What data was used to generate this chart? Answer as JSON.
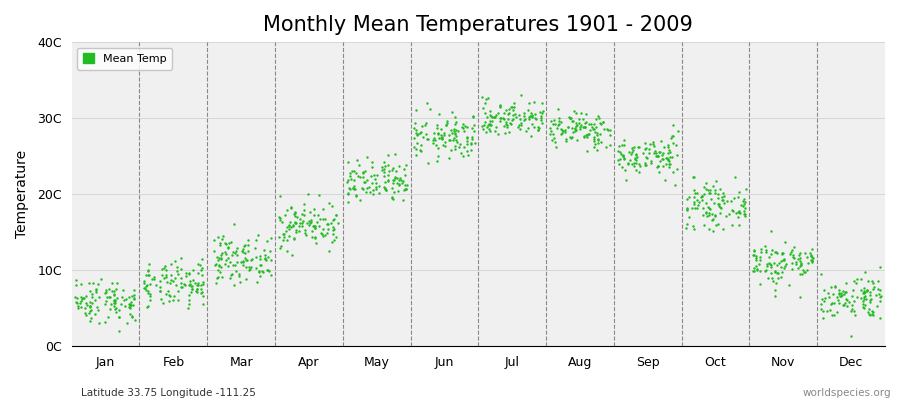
{
  "title": "Monthly Mean Temperatures 1901 - 2009",
  "ylabel": "Temperature",
  "xlabel_labels": [
    "Jan",
    "Feb",
    "Mar",
    "Apr",
    "May",
    "Jun",
    "Jul",
    "Aug",
    "Sep",
    "Oct",
    "Nov",
    "Dec"
  ],
  "ytick_labels": [
    "0C",
    "10C",
    "20C",
    "30C",
    "40C"
  ],
  "ytick_values": [
    0,
    10,
    20,
    30,
    40
  ],
  "dot_color": "#22bb22",
  "dot_size": 3,
  "legend_label": "Mean Temp",
  "subtitle": "Latitude 33.75 Longitude -111.25",
  "watermark": "worldspecies.org",
  "monthly_means": [
    6.0,
    8.0,
    11.5,
    16.0,
    21.5,
    27.5,
    30.0,
    28.5,
    25.0,
    18.5,
    11.0,
    6.5
  ],
  "monthly_stds": [
    1.5,
    1.5,
    1.5,
    1.5,
    1.5,
    1.5,
    1.2,
    1.2,
    1.3,
    1.4,
    1.5,
    1.5
  ],
  "n_years": 109,
  "ylim": [
    0,
    40
  ],
  "title_fontsize": 15,
  "axis_label_fontsize": 10,
  "tick_fontsize": 9,
  "grid_color": "#888888",
  "grid_style": "--",
  "bg_color": "#f0f0f0"
}
